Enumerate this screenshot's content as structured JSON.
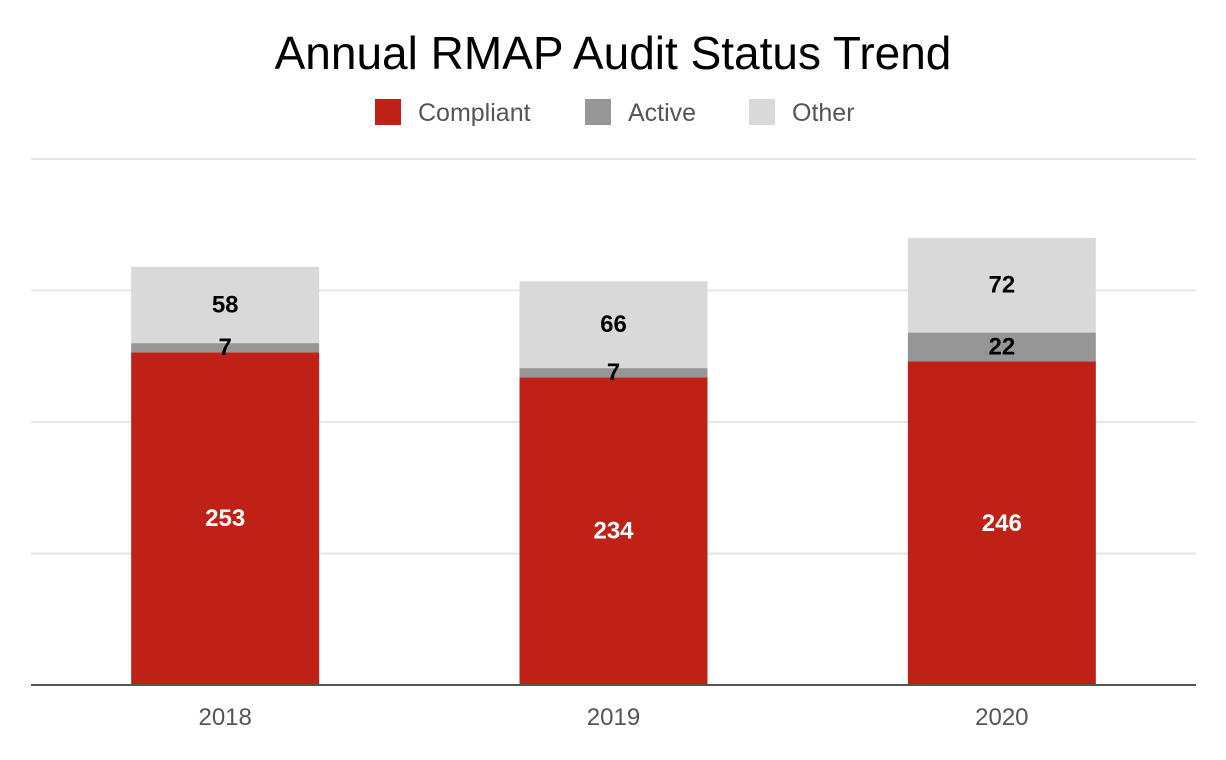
{
  "chart_data": {
    "type": "bar",
    "stacked": true,
    "title": "Annual RMAP Audit Status Trend",
    "categories": [
      "2018",
      "2019",
      "2020"
    ],
    "series": [
      {
        "name": "Compliant",
        "color": "#bf2116",
        "label_color": "#ffffff",
        "values": [
          253,
          234,
          246
        ]
      },
      {
        "name": "Active",
        "color": "#969696",
        "label_color": "#000000",
        "values": [
          7,
          7,
          22
        ]
      },
      {
        "name": "Other",
        "color": "#d9d9d9",
        "label_color": "#000000",
        "values": [
          58,
          66,
          72
        ]
      }
    ],
    "ylim": [
      0,
      400
    ],
    "gridlines": [
      100,
      200,
      300,
      400
    ],
    "xlabel": "",
    "ylabel": "",
    "legend_position": "top-center",
    "grid": true
  }
}
